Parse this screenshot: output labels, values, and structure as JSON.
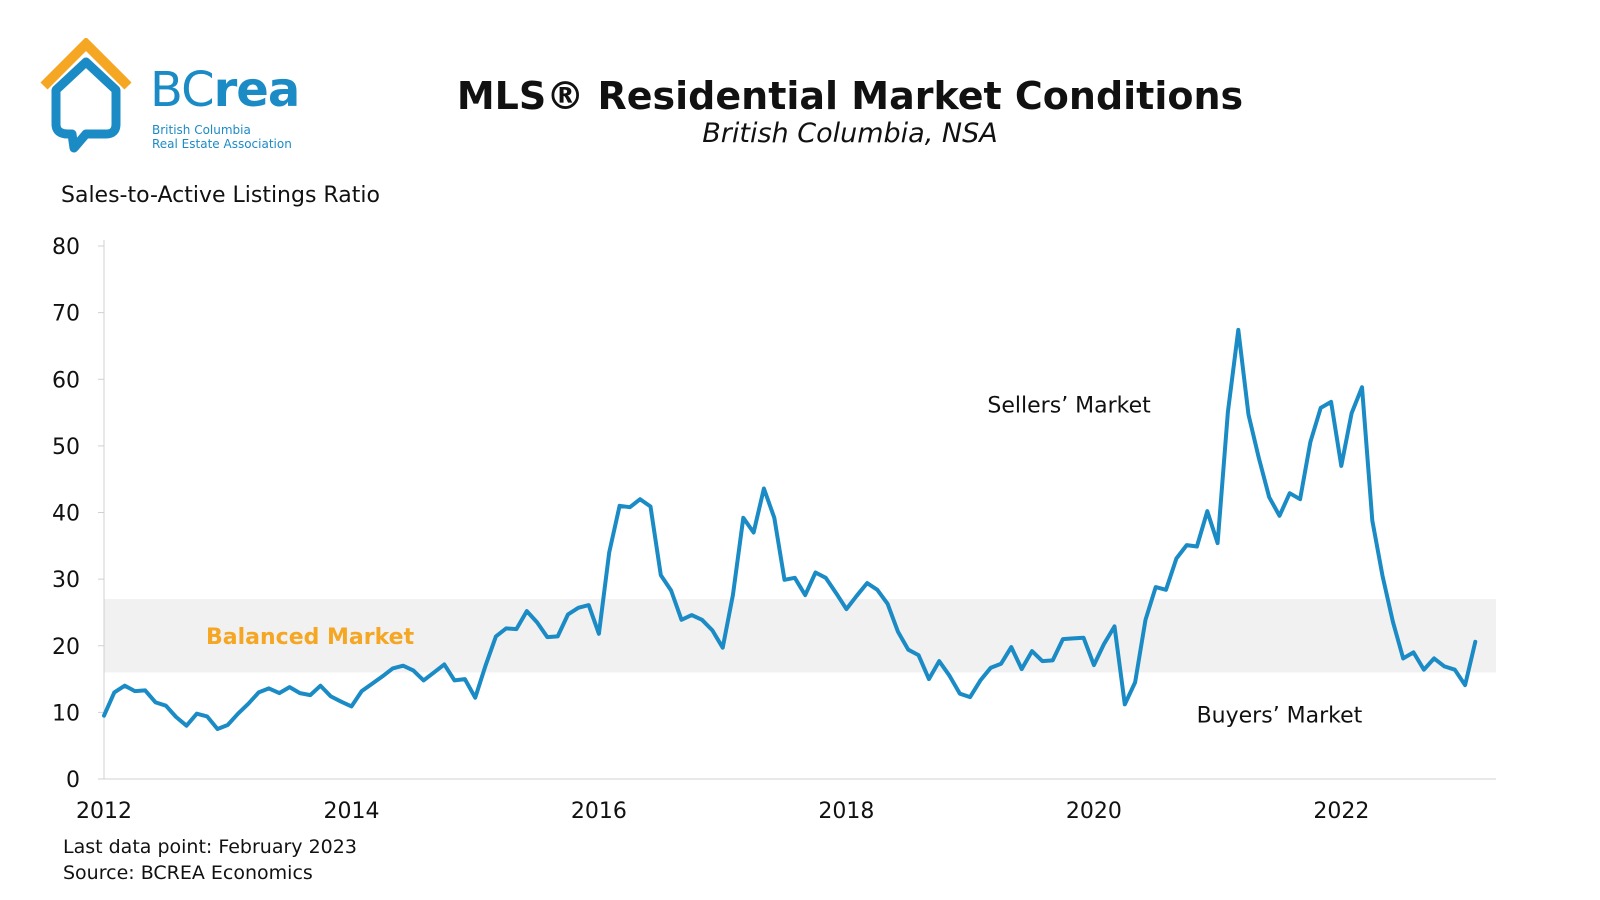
{
  "logo": {
    "word_light": "BC",
    "word_bold": "rea",
    "line1": "British Columbia",
    "line2": "Real Estate Association",
    "colors": {
      "roof": "#f5a623",
      "house": "#1b8bc6"
    }
  },
  "header": {
    "title": "MLS® Residential Market Conditions",
    "subtitle": "British Columbia, NSA"
  },
  "footer": {
    "last_point": "Last data point: February 2023",
    "source": "Source: BCREA Economics"
  },
  "colors": {
    "line": "#1b8bc6",
    "band": "#f1f1f1",
    "balanced_label": "#f5a623",
    "axis": "#d0d0d0"
  },
  "chart_data": {
    "type": "line",
    "ylabel": "Sales-to-Active Listings Ratio",
    "xlabel": "",
    "ylim": [
      0,
      80
    ],
    "yticks": [
      0,
      10,
      20,
      30,
      40,
      50,
      60,
      70,
      80
    ],
    "xlim": [
      2012,
      2023.25
    ],
    "xticks": [
      2012,
      2014,
      2016,
      2018,
      2020,
      2022
    ],
    "grid": false,
    "balanced_band": {
      "low": 16,
      "high": 27,
      "label": "Balanced Market"
    },
    "annotations": [
      {
        "text": "Sellers’ Market",
        "x": 2019.8,
        "y": 55
      },
      {
        "text": "Buyers’ Market",
        "x": 2021.5,
        "y": 8.5
      }
    ],
    "series": [
      {
        "x": [
          2012.0,
          2012.083,
          2012.167,
          2012.25,
          2012.333,
          2012.417,
          2012.5,
          2012.583,
          2012.667,
          2012.75,
          2012.833,
          2012.917,
          2013.0,
          2013.083,
          2013.167,
          2013.25,
          2013.333,
          2013.417,
          2013.5,
          2013.583,
          2013.667,
          2013.75,
          2013.833,
          2013.917,
          2014.0,
          2014.083,
          2014.167,
          2014.25,
          2014.333,
          2014.417,
          2014.5,
          2014.583,
          2014.667,
          2014.75,
          2014.833,
          2014.917,
          2015.0,
          2015.083,
          2015.167,
          2015.25,
          2015.333,
          2015.417,
          2015.5,
          2015.583,
          2015.667,
          2015.75,
          2015.833,
          2015.917,
          2016.0,
          2016.083,
          2016.167,
          2016.25,
          2016.333,
          2016.417,
          2016.5,
          2016.583,
          2016.667,
          2016.75,
          2016.833,
          2016.917,
          2017.0,
          2017.083,
          2017.167,
          2017.25,
          2017.333,
          2017.417,
          2017.5,
          2017.583,
          2017.667,
          2017.75,
          2017.833,
          2017.917,
          2018.0,
          2018.083,
          2018.167,
          2018.25,
          2018.333,
          2018.417,
          2018.5,
          2018.583,
          2018.667,
          2018.75,
          2018.833,
          2018.917,
          2019.0,
          2019.083,
          2019.167,
          2019.25,
          2019.333,
          2019.417,
          2019.5,
          2019.583,
          2019.667,
          2019.75,
          2019.833,
          2019.917,
          2020.0,
          2020.083,
          2020.167,
          2020.25,
          2020.333,
          2020.417,
          2020.5,
          2020.583,
          2020.667,
          2020.75,
          2020.833,
          2020.917,
          2021.0,
          2021.083,
          2021.167,
          2021.25,
          2021.333,
          2021.417,
          2021.5,
          2021.583,
          2021.667,
          2021.75,
          2021.833,
          2021.917,
          2022.0,
          2022.083,
          2022.167,
          2022.25,
          2022.333,
          2022.417,
          2022.5,
          2022.583,
          2022.667,
          2022.75,
          2022.833,
          2022.917,
          2023.0,
          2023.083
        ],
        "y": [
          9.5,
          13,
          14,
          13.2,
          13.3,
          11.5,
          11,
          9.3,
          8,
          9.8,
          9.4,
          7.5,
          8.1,
          9.8,
          11.3,
          13,
          13.6,
          12.9,
          13.8,
          12.9,
          12.6,
          14,
          12.4,
          11.6,
          10.9,
          13.2,
          14.3,
          15.4,
          16.6,
          17,
          16.3,
          14.8,
          16,
          17.2,
          14.8,
          15,
          12.2,
          17,
          21.4,
          22.6,
          22.5,
          25.2,
          23.5,
          21.3,
          21.4,
          24.7,
          25.7,
          26.1,
          21.8,
          34,
          41,
          40.8,
          42,
          40.9,
          30.6,
          28.3,
          23.9,
          24.6,
          23.9,
          22.3,
          19.7,
          27.6,
          39.2,
          37,
          43.6,
          39.2,
          29.9,
          30.2,
          27.6,
          31,
          30.2,
          27.9,
          25.5,
          27.5,
          29.4,
          28.4,
          26.3,
          22.1,
          19.4,
          18.6,
          15,
          17.7,
          15.5,
          12.8,
          12.3,
          14.8,
          16.7,
          17.3,
          19.8,
          16.5,
          19.2,
          17.7,
          17.8,
          21,
          21.1,
          21.2,
          17.1,
          20.3,
          22.9,
          11.2,
          14.5,
          23.9,
          28.8,
          28.4,
          33.1,
          35.1,
          34.9,
          40.2,
          35.4,
          55.1,
          67.4,
          54.7,
          48.2,
          42.3,
          39.5,
          42.9,
          42,
          50.6,
          55.7,
          56.6,
          47,
          54.9,
          58.8,
          38.8,
          30.5,
          23.6,
          18.1,
          19,
          16.4,
          18.1,
          16.9,
          16.4,
          14.1,
          20.6
        ]
      }
    ]
  }
}
